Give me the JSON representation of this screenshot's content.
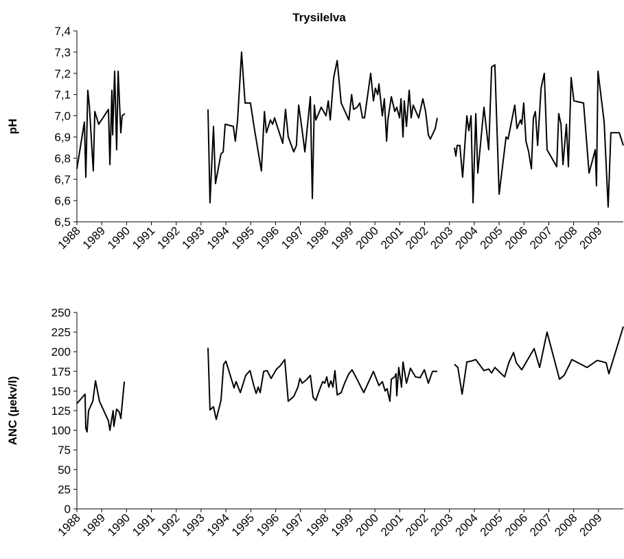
{
  "chart_data": [
    {
      "type": "line",
      "title": "Trysilelva",
      "y_label": "pH",
      "color": "#000000",
      "xlim": [
        1988,
        2010
      ],
      "xticks": [
        1988,
        1989,
        1990,
        1991,
        1992,
        1993,
        1994,
        1995,
        1996,
        1997,
        1998,
        1999,
        2000,
        2001,
        2002,
        2003,
        2004,
        2005,
        2006,
        2007,
        2008,
        2009
      ],
      "ylim": [
        6.5,
        7.4
      ],
      "yticks": [
        {
          "value": 6.5,
          "label": "6,5"
        },
        {
          "value": 6.6,
          "label": "6,6"
        },
        {
          "value": 6.7,
          "label": "6,7"
        },
        {
          "value": 6.8,
          "label": "6,8"
        },
        {
          "value": 6.9,
          "label": "6,9"
        },
        {
          "value": 7.0,
          "label": "7,0"
        },
        {
          "value": 7.1,
          "label": "7,1"
        },
        {
          "value": 7.2,
          "label": "7,2"
        },
        {
          "value": 7.3,
          "label": "7,3"
        },
        {
          "value": 7.4,
          "label": "7,4"
        }
      ],
      "x": [
        1988.0,
        1988.3,
        1988.36,
        1988.44,
        1988.5,
        1988.66,
        1988.72,
        1988.88,
        1989.27,
        1989.33,
        1989.41,
        1989.44,
        1989.52,
        1989.6,
        1989.66,
        1989.77,
        1989.82,
        1989.93,
        null,
        1993.28,
        1993.36,
        1993.5,
        1993.58,
        1993.8,
        1993.89,
        1993.97,
        1994.3,
        1994.38,
        1994.47,
        1994.63,
        1994.77,
        1994.99,
        1995.13,
        1995.43,
        1995.55,
        1995.63,
        1995.79,
        1995.88,
        1995.96,
        1996.04,
        1996.29,
        1996.4,
        1996.51,
        1996.73,
        1996.84,
        1996.93,
        1997.07,
        1997.18,
        1997.4,
        1997.48,
        1997.56,
        1997.62,
        1997.84,
        1998.03,
        1998.12,
        1998.2,
        1998.34,
        1998.48,
        1998.64,
        1998.95,
        1999.06,
        1999.14,
        1999.28,
        1999.39,
        1999.5,
        1999.58,
        1999.83,
        1999.94,
        2000.02,
        2000.11,
        2000.16,
        2000.3,
        2000.38,
        2000.47,
        2000.52,
        2000.66,
        2000.8,
        2000.88,
        2000.99,
        2001.05,
        2001.13,
        2001.18,
        2001.27,
        2001.38,
        2001.46,
        2001.54,
        2001.76,
        2001.93,
        2002.04,
        2002.15,
        2002.23,
        2002.43,
        2002.51,
        null,
        2003.2,
        2003.26,
        2003.31,
        2003.42,
        2003.53,
        2003.7,
        2003.78,
        2003.87,
        2003.95,
        2004.06,
        2004.14,
        2004.39,
        2004.58,
        2004.7,
        2004.83,
        2005.0,
        2005.28,
        2005.36,
        2005.63,
        2005.72,
        2005.86,
        2005.91,
        2005.99,
        2006.08,
        2006.19,
        2006.3,
        2006.38,
        2006.46,
        2006.55,
        2006.69,
        2006.82,
        2006.93,
        2007.32,
        2007.4,
        2007.49,
        2007.57,
        2007.71,
        2007.79,
        2007.9,
        2008.01,
        2008.4,
        2008.62,
        2008.87,
        2008.92,
        2008.98,
        2009.23,
        2009.39,
        2009.5,
        2009.84,
        2010.0
      ],
      "values": [
        6.75,
        6.97,
        6.71,
        7.12,
        7.05,
        6.74,
        7.02,
        6.96,
        7.03,
        6.77,
        7.12,
        6.91,
        7.21,
        6.84,
        7.21,
        6.92,
        7.0,
        7.01,
        null,
        7.03,
        6.59,
        6.95,
        6.68,
        6.82,
        6.83,
        6.96,
        6.95,
        6.88,
        6.98,
        7.3,
        7.06,
        7.06,
        6.95,
        6.74,
        7.02,
        6.92,
        6.98,
        6.96,
        6.99,
        6.96,
        6.87,
        7.03,
        6.9,
        6.83,
        6.86,
        7.05,
        6.93,
        6.83,
        7.09,
        6.61,
        7.05,
        6.98,
        7.04,
        7.0,
        7.07,
        6.98,
        7.18,
        7.26,
        7.06,
        6.98,
        7.1,
        7.03,
        7.04,
        7.06,
        6.99,
        6.99,
        7.2,
        7.07,
        7.13,
        7.1,
        7.15,
        7.0,
        7.08,
        6.88,
        6.98,
        7.09,
        7.02,
        7.04,
        6.99,
        7.08,
        6.9,
        7.07,
        6.95,
        7.12,
        6.99,
        7.05,
        6.99,
        7.08,
        7.02,
        6.91,
        6.89,
        6.94,
        6.99,
        null,
        6.85,
        6.81,
        6.86,
        6.86,
        6.71,
        7.0,
        6.93,
        7.0,
        6.59,
        7.01,
        6.73,
        7.04,
        6.84,
        7.23,
        7.24,
        6.63,
        6.9,
        6.89,
        7.05,
        6.94,
        6.98,
        6.96,
        7.06,
        6.88,
        6.83,
        6.75,
        6.99,
        7.02,
        6.86,
        7.13,
        7.2,
        6.84,
        6.76,
        7.01,
        6.96,
        6.77,
        6.96,
        6.76,
        7.18,
        7.07,
        7.06,
        6.73,
        6.84,
        6.67,
        7.21,
        6.97,
        6.57,
        6.92,
        6.92,
        6.86
      ]
    },
    {
      "type": "line",
      "y_label": "ANC (µekv/l)",
      "color": "#000000",
      "xlim": [
        1988,
        2010
      ],
      "xticks": [
        1988,
        1989,
        1990,
        1991,
        1992,
        1993,
        1994,
        1995,
        1996,
        1997,
        1998,
        1999,
        2000,
        2001,
        2002,
        2003,
        2004,
        2005,
        2006,
        2007,
        2008,
        2009
      ],
      "ylim": [
        0,
        250
      ],
      "yticks": [
        0,
        25,
        50,
        75,
        100,
        125,
        150,
        175,
        200,
        225,
        250
      ],
      "x": [
        1988.0,
        1988.33,
        1988.36,
        1988.41,
        1988.47,
        1988.64,
        1988.75,
        1988.91,
        1989.27,
        1989.33,
        1989.38,
        1989.46,
        1989.49,
        1989.6,
        1989.71,
        1989.77,
        1989.91,
        null,
        1993.28,
        1993.36,
        1993.5,
        1993.61,
        1993.8,
        1993.91,
        1994.0,
        1994.33,
        1994.41,
        1994.58,
        1994.8,
        1994.97,
        1995.13,
        1995.22,
        1995.3,
        1995.38,
        1995.52,
        1995.66,
        1995.82,
        1996.04,
        1996.18,
        1996.37,
        1996.51,
        1996.73,
        1996.9,
        1996.98,
        1997.07,
        1997.23,
        1997.4,
        1997.51,
        1997.62,
        1997.73,
        1997.81,
        1997.9,
        1997.98,
        1998.06,
        1998.14,
        1998.23,
        1998.31,
        1998.39,
        1998.48,
        1998.64,
        1998.78,
        1998.95,
        1999.08,
        1999.28,
        1999.55,
        1999.94,
        2000.16,
        2000.3,
        2000.41,
        2000.49,
        2000.6,
        2000.66,
        2000.8,
        2000.85,
        2000.88,
        2000.96,
        2001.07,
        2001.13,
        2001.27,
        2001.43,
        2001.63,
        2001.82,
        2001.99,
        2002.15,
        2002.32,
        2002.51,
        null,
        2003.2,
        2003.34,
        2003.51,
        2003.7,
        2003.87,
        2004.06,
        2004.39,
        2004.58,
        2004.7,
        2004.83,
        2005.22,
        2005.39,
        2005.58,
        2005.69,
        2005.91,
        2006.41,
        2006.63,
        2006.93,
        2007.43,
        2007.62,
        2007.93,
        2008.54,
        2008.95,
        2009.31,
        2009.42,
        2010.0
      ],
      "values": [
        134,
        146,
        103,
        98,
        125,
        137,
        163,
        137,
        112,
        100,
        110,
        125,
        105,
        127,
        123,
        115,
        162,
        null,
        205,
        126,
        130,
        114,
        138,
        184,
        188,
        154,
        162,
        148,
        170,
        176,
        156,
        147,
        155,
        148,
        175,
        176,
        166,
        178,
        182,
        190,
        137,
        143,
        155,
        166,
        160,
        164,
        170,
        142,
        138,
        148,
        155,
        162,
        160,
        168,
        155,
        163,
        155,
        176,
        145,
        148,
        160,
        172,
        177,
        165,
        148,
        175,
        157,
        162,
        150,
        153,
        137,
        165,
        168,
        172,
        144,
        180,
        155,
        187,
        160,
        179,
        168,
        167,
        177,
        160,
        175,
        175,
        null,
        184,
        180,
        146,
        187,
        188,
        190,
        176,
        178,
        173,
        180,
        168,
        186,
        199,
        186,
        177,
        204,
        180,
        225,
        165,
        170,
        190,
        180,
        189,
        186,
        172,
        232
      ]
    }
  ]
}
